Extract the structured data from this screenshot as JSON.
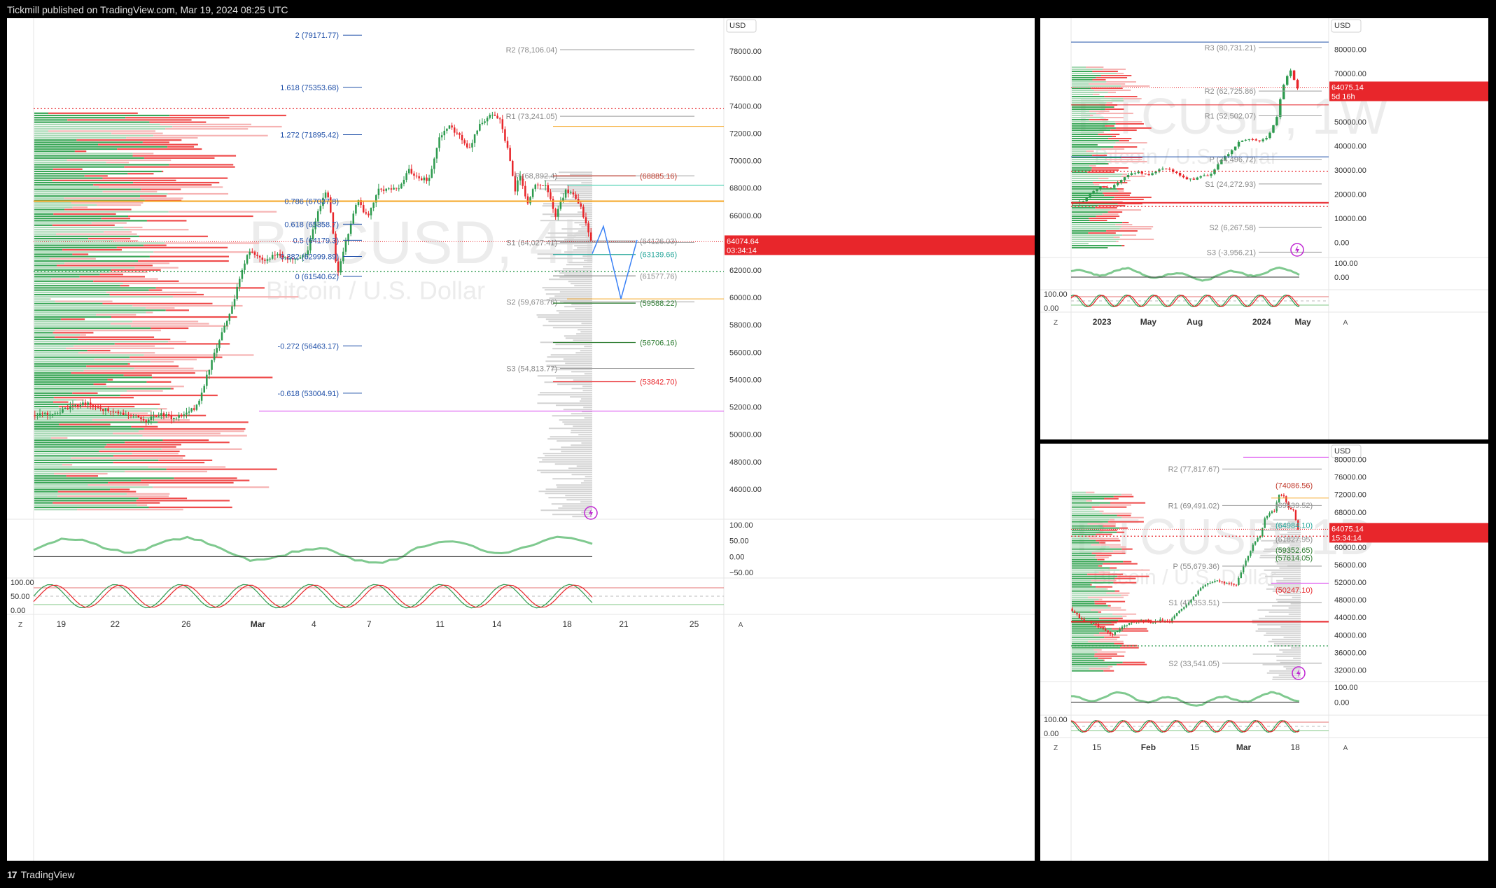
{
  "header": {
    "text": "Tickmill published on TradingView.com, Mar 19, 2024 08:25 UTC"
  },
  "footer": {
    "logo": "17",
    "text": "TradingView"
  },
  "chart_data": [
    {
      "id": "main",
      "type": "candlestick",
      "currency": "USD",
      "watermark_symbol": "BTCUSD, 4h",
      "watermark_name": "Bitcoin / U.S. Dollar",
      "ylim": [
        44000,
        80000
      ],
      "y_ticks": [
        "78000.00",
        "76000.00",
        "74000.00",
        "72000.00",
        "70000.00",
        "68000.00",
        "66000.00",
        "64000.00",
        "62000.00",
        "60000.00",
        "58000.00",
        "56000.00",
        "54000.00",
        "52000.00",
        "50000.00",
        "48000.00",
        "46000.00"
      ],
      "x_ticks": [
        "19",
        "22",
        "26",
        "Mar",
        "4",
        "7",
        "11",
        "14",
        "18",
        "21",
        "25"
      ],
      "last_price": {
        "value": 64074.64,
        "label": "64074.64",
        "countdown": "03:34:14"
      },
      "close_path": [
        [
          0,
          51400
        ],
        [
          10,
          51600
        ],
        [
          20,
          52300
        ],
        [
          30,
          51700
        ],
        [
          40,
          51300
        ],
        [
          45,
          51000
        ],
        [
          50,
          51500
        ],
        [
          55,
          51200
        ],
        [
          60,
          51400
        ],
        [
          65,
          52100
        ],
        [
          70,
          55000
        ],
        [
          74,
          57000
        ],
        [
          78,
          59000
        ],
        [
          82,
          61500
        ],
        [
          85,
          63500
        ],
        [
          88,
          63000
        ],
        [
          92,
          62600
        ],
        [
          96,
          63200
        ],
        [
          100,
          62900
        ],
        [
          104,
          62700
        ],
        [
          108,
          63200
        ],
        [
          112,
          66000
        ],
        [
          116,
          68000
        ],
        [
          118,
          65500
        ],
        [
          120,
          61500
        ],
        [
          122,
          63000
        ],
        [
          125,
          65200
        ],
        [
          128,
          67200
        ],
        [
          132,
          65800
        ],
        [
          136,
          67800
        ],
        [
          140,
          68000
        ],
        [
          144,
          67800
        ],
        [
          148,
          69300
        ],
        [
          152,
          68800
        ],
        [
          156,
          68500
        ],
        [
          160,
          71600
        ],
        [
          164,
          72500
        ],
        [
          168,
          71800
        ],
        [
          172,
          70800
        ],
        [
          176,
          72600
        ],
        [
          180,
          73300
        ],
        [
          184,
          73100
        ],
        [
          186,
          71500
        ],
        [
          188,
          70300
        ],
        [
          190,
          67800
        ],
        [
          192,
          68900
        ],
        [
          195,
          66800
        ],
        [
          198,
          68400
        ],
        [
          202,
          68200
        ],
        [
          206,
          66000
        ],
        [
          210,
          67800
        ],
        [
          214,
          67300
        ],
        [
          216,
          66500
        ],
        [
          218,
          65500
        ],
        [
          220,
          64074
        ]
      ],
      "fib_levels": [
        {
          "label": "2 (79171.77)",
          "value": 79171.77
        },
        {
          "label": "1.618 (75353.68)",
          "value": 75353.68
        },
        {
          "label": "1.272 (71895.42)",
          "value": 71895.42
        },
        {
          "label": "0.786 (67037.8)",
          "value": 67037.8
        },
        {
          "label": "0.618 (65358.7)",
          "value": 65358.7
        },
        {
          "label": "0.5 (64179.3)",
          "value": 64179.3
        },
        {
          "label": "0.382 (62999.89)",
          "value": 62999.89
        },
        {
          "label": "0 (61540.62)",
          "value": 61540.62
        },
        {
          "label": "-0.272 (56463.17)",
          "value": 56463.17
        },
        {
          "label": "-0.618 (53004.91)",
          "value": 53004.91
        }
      ],
      "pivots": [
        {
          "label": "R2 (78,106.04)",
          "value": 78106.04
        },
        {
          "label": "R1 (73,241.05)",
          "value": 73241.05
        },
        {
          "label": "P (68,892.4)",
          "value": 68892.4
        },
        {
          "label": "S1 (64,027.41)",
          "value": 64027.41
        },
        {
          "label": "S2 (59,678.76)",
          "value": 59678.76
        },
        {
          "label": "S3 (54,813.77)",
          "value": 54813.77
        }
      ],
      "zones": [
        {
          "label": "(68885.16)",
          "value": 68885.16
        },
        {
          "label": "(64126.03)",
          "value": 64126.03
        },
        {
          "label": "(63139.66)",
          "value": 63139.66
        },
        {
          "label": "(61577.76)",
          "value": 61577.76
        },
        {
          "label": "(59588.22)",
          "value": 59588.22
        },
        {
          "label": "(56706.16)",
          "value": 56706.16
        },
        {
          "label": "(53842.70)",
          "value": 53842.7
        }
      ],
      "rsi_ticks": [
        "100.00",
        "50.00",
        "0.00",
        "−50.00"
      ],
      "stoch_ticks": [
        "100.00",
        "50.00",
        "0.00"
      ],
      "corner": [
        "Z",
        "A"
      ]
    },
    {
      "id": "weekly",
      "type": "candlestick",
      "currency": "USD",
      "watermark_symbol": "BTCUSD, 1W",
      "watermark_name": "Bitcoin / U.S. Dollar",
      "ylim": [
        -5000,
        90000
      ],
      "y_ticks": [
        "80000.00",
        "70000.00",
        "60000.00",
        "50000.00",
        "40000.00",
        "30000.00",
        "20000.00",
        "10000.00",
        "0.00"
      ],
      "x_ticks": [
        "2023",
        "May",
        "Aug",
        "2024",
        "May"
      ],
      "last_price": {
        "value": 64075.14,
        "label": "64075.14",
        "countdown": "5d 16h"
      },
      "close_path": [
        [
          0,
          16500
        ],
        [
          6,
          17000
        ],
        [
          10,
          21500
        ],
        [
          14,
          23500
        ],
        [
          18,
          22500
        ],
        [
          22,
          25500
        ],
        [
          26,
          28000
        ],
        [
          30,
          29500
        ],
        [
          34,
          27500
        ],
        [
          38,
          30000
        ],
        [
          42,
          30500
        ],
        [
          46,
          29000
        ],
        [
          50,
          26500
        ],
        [
          54,
          26200
        ],
        [
          58,
          27500
        ],
        [
          62,
          28500
        ],
        [
          66,
          34500
        ],
        [
          70,
          37500
        ],
        [
          74,
          42000
        ],
        [
          78,
          43000
        ],
        [
          82,
          42000
        ],
        [
          86,
          43500
        ],
        [
          90,
          52000
        ],
        [
          92,
          62000
        ],
        [
          94,
          68000
        ],
        [
          96,
          71000
        ],
        [
          97,
          68000
        ],
        [
          99,
          64075
        ]
      ],
      "pivots": [
        {
          "label": "R3 (80,731.21)",
          "value": 80731.21
        },
        {
          "label": "R2 (62,725.86)",
          "value": 62725.86
        },
        {
          "label": "R1 (52,502.07)",
          "value": 52502.07
        },
        {
          "label": "P (34,496.72)",
          "value": 34496.72
        },
        {
          "label": "S1 (24,272.93)",
          "value": 24272.93
        },
        {
          "label": "S2 (6,267.58)",
          "value": 6267.58
        },
        {
          "label": "S3 (-3,956.21)",
          "value": -3956.21
        }
      ],
      "rsi_ticks": [
        "100.00",
        "0.00"
      ],
      "stoch_ticks": [
        "100.00",
        "0.00"
      ],
      "corner": [
        "Z",
        "A"
      ]
    },
    {
      "id": "daily",
      "type": "candlestick",
      "currency": "USD",
      "watermark_symbol": "BTCUSD, 1D",
      "watermark_name": "Bitcoin / U.S. Dollar",
      "ylim": [
        30000,
        82000
      ],
      "y_ticks": [
        "80000.00",
        "76000.00",
        "72000.00",
        "68000.00",
        "64000.00",
        "60000.00",
        "56000.00",
        "52000.00",
        "48000.00",
        "44000.00",
        "40000.00",
        "36000.00",
        "32000.00"
      ],
      "x_ticks": [
        "15",
        "Feb",
        "15",
        "Mar",
        "18"
      ],
      "last_price": {
        "value": 64075.14,
        "label": "64075.14",
        "countdown": "15:34:14"
      },
      "close_path": [
        [
          0,
          46000
        ],
        [
          5,
          43500
        ],
        [
          10,
          42500
        ],
        [
          14,
          41500
        ],
        [
          18,
          40000
        ],
        [
          22,
          41800
        ],
        [
          26,
          42800
        ],
        [
          30,
          43200
        ],
        [
          34,
          42800
        ],
        [
          38,
          43500
        ],
        [
          42,
          43000
        ],
        [
          46,
          45500
        ],
        [
          50,
          47500
        ],
        [
          54,
          50000
        ],
        [
          58,
          52000
        ],
        [
          62,
          52300
        ],
        [
          66,
          51800
        ],
        [
          70,
          51500
        ],
        [
          74,
          57000
        ],
        [
          78,
          61500
        ],
        [
          80,
          62500
        ],
        [
          82,
          66500
        ],
        [
          84,
          67800
        ],
        [
          86,
          68300
        ],
        [
          88,
          72000
        ],
        [
          90,
          71500
        ],
        [
          92,
          69000
        ],
        [
          94,
          68500
        ],
        [
          96,
          64075
        ]
      ],
      "pivots": [
        {
          "label": "R2 (77,817.67)",
          "value": 77817.67
        },
        {
          "label": "R1 (69,491.02)",
          "value": 69491.02
        },
        {
          "label": "P (55,679.36)",
          "value": 55679.36
        },
        {
          "label": "S1 (47,353.51)",
          "value": 47353.51
        },
        {
          "label": "S2 (33,541.05)",
          "value": 33541.05
        }
      ],
      "zones": [
        {
          "label": "(74086.56)",
          "value": 74086.56
        },
        {
          "label": "(69539.52)",
          "value": 69539.52
        },
        {
          "label": "(64984.10)",
          "value": 64984.1
        },
        {
          "label": "(61827.95)",
          "value": 61827.95
        },
        {
          "label": "(59352.65)",
          "value": 59352.65
        },
        {
          "label": "(57614.05)",
          "value": 57614.05
        },
        {
          "label": "(50247.10)",
          "value": 50247.1
        }
      ],
      "rsi_ticks": [
        "100.00",
        "0.00"
      ],
      "stoch_ticks": [
        "100.00",
        "0.00"
      ],
      "corner": [
        "Z",
        "A"
      ]
    }
  ],
  "colors": {
    "up": "#2e9b4f",
    "down": "#e8262b",
    "fib": "#1f4fa8",
    "pivot": "#9e9e9e",
    "orange": "#f5a623",
    "magenta": "#d946ef",
    "redline": "#e8262b",
    "greenline": "#2e9b4f",
    "cyan": "#26c6a0",
    "price_badge": "#e8262b"
  }
}
